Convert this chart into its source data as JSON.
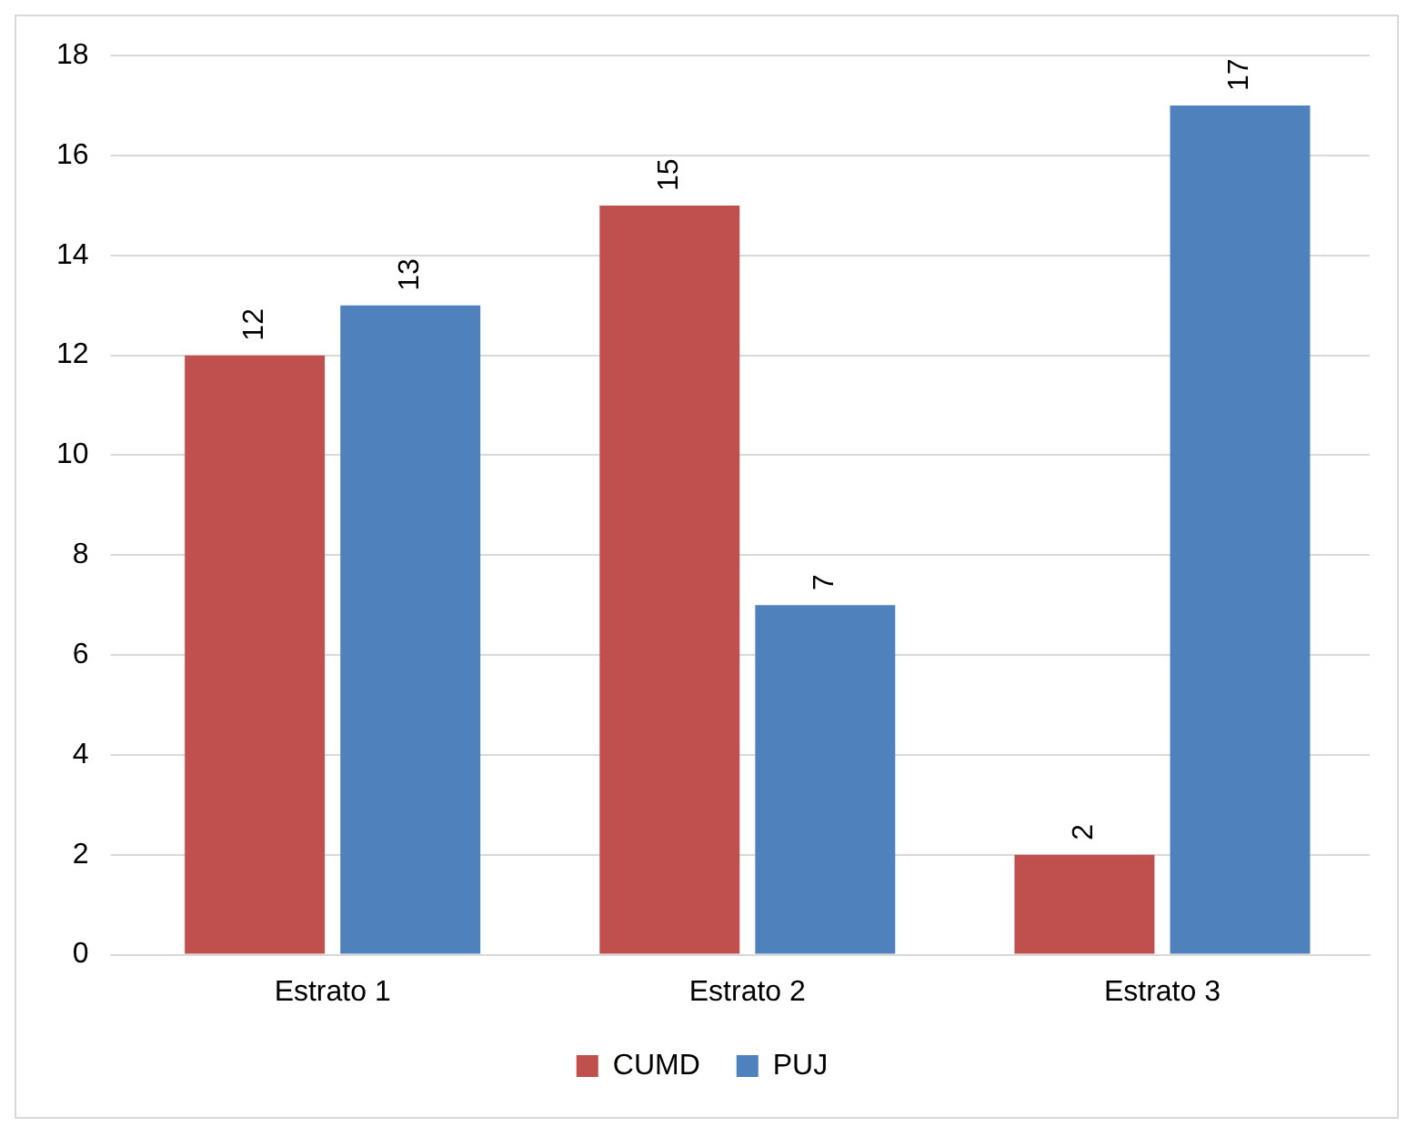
{
  "chart_data": {
    "type": "bar",
    "categories": [
      "Estrato 1",
      "Estrato 2",
      "Estrato 3"
    ],
    "series": [
      {
        "name": "CUMD",
        "color": "#c0504d",
        "values": [
          12,
          15,
          2
        ]
      },
      {
        "name": "PUJ",
        "color": "#4f81bd",
        "values": [
          13,
          7,
          17
        ]
      }
    ],
    "ylim": [
      0,
      18
    ],
    "yticks": [
      0,
      2,
      4,
      6,
      8,
      10,
      12,
      14,
      16,
      18
    ],
    "grid": "y",
    "legend": "bottom",
    "data_labels": true
  }
}
